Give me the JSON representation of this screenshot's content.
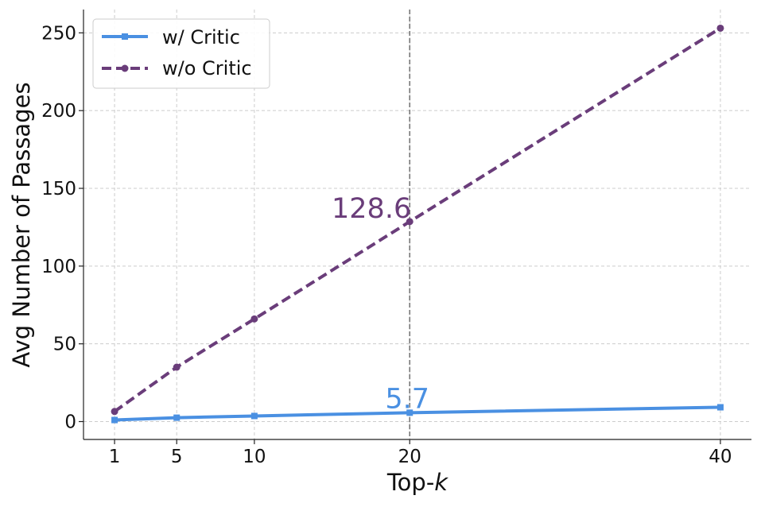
{
  "chart_data": {
    "type": "line",
    "xlabel": "Top-k",
    "ylabel": "Avg Number of Passages",
    "x": [
      1,
      5,
      10,
      20,
      40
    ],
    "xticks": [
      "1",
      "5",
      "10",
      "20",
      "40"
    ],
    "yticks": [
      "0",
      "50",
      "100",
      "150",
      "200",
      "250"
    ],
    "xlim": [
      -1,
      42
    ],
    "ylim": [
      -11.5,
      265
    ],
    "grid": true,
    "legend_position": "top-left",
    "series": [
      {
        "name": "w/ Critic",
        "values": [
          1.0,
          2.5,
          3.6,
          5.7,
          9.2
        ],
        "color": "#4a90e2",
        "style": "solid",
        "marker": "square"
      },
      {
        "name": "w/o Critic",
        "values": [
          6.5,
          35.0,
          66.0,
          128.6,
          253.0
        ],
        "color": "#6a3d7a",
        "style": "dashed",
        "marker": "circle"
      }
    ],
    "vline": {
      "x": 20,
      "color": "#777777"
    },
    "annotations": [
      {
        "text": "128.6",
        "x": 20,
        "y": 128.6,
        "series": 1,
        "color": "#6a3d7a"
      },
      {
        "text": "5.7",
        "x": 20,
        "y": 5.7,
        "series": 0,
        "color": "#4a90e2"
      }
    ]
  }
}
